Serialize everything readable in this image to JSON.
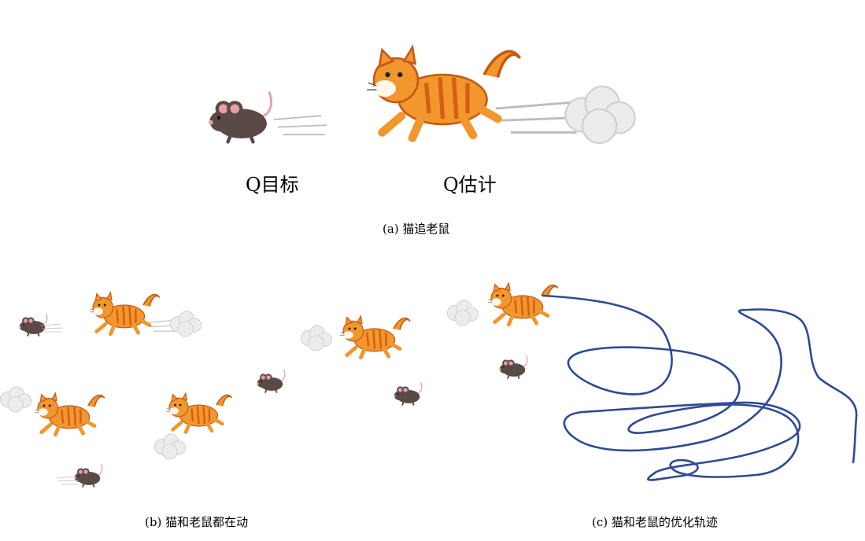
{
  "panel_a": {
    "left_label": "Q目标",
    "right_label": "Q估计",
    "caption": "(a) 猫追老鼠"
  },
  "panel_b": {
    "caption": "(b) 猫和老鼠都在动"
  },
  "panel_c": {
    "caption": "(c) 猫和老鼠的优化轨迹"
  },
  "colors": {
    "cat_orange": "#f2962e",
    "cat_stripe": "#d45e12",
    "mouse_body": "#5a4a46",
    "mouse_ear": "#e8a0a8",
    "dust": "#e6e6e6",
    "trajectory": "#2d4a94"
  },
  "icons": [
    "cat-icon",
    "mouse-icon",
    "dust-cloud-icon",
    "trajectory-path"
  ]
}
